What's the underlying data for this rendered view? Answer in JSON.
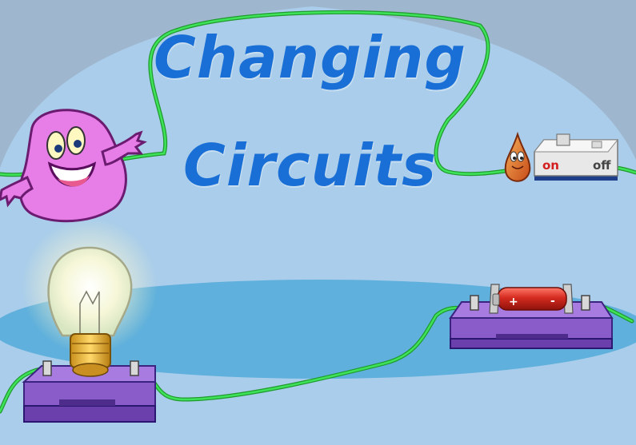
{
  "title": {
    "line1": "Changing",
    "line2": "Circuits"
  },
  "switch": {
    "on_label": "on",
    "off_label": "off"
  },
  "battery": {
    "plus": "+",
    "minus": "-"
  },
  "colors": {
    "background_outer": "#9fb6cf",
    "background_dome": "#a9cdea",
    "floor_ellipse": "#5fb0dc",
    "title": "#1a6fd6",
    "wire": "#22c33a",
    "base_purple": "#8a5cc9",
    "creature_pink": "#e77de6",
    "battery_red": "#d52b20"
  },
  "icons": [
    "pink-creature-mascot",
    "light-bulb-icon",
    "switch-icon",
    "battery-icon",
    "drop-character-icon"
  ]
}
